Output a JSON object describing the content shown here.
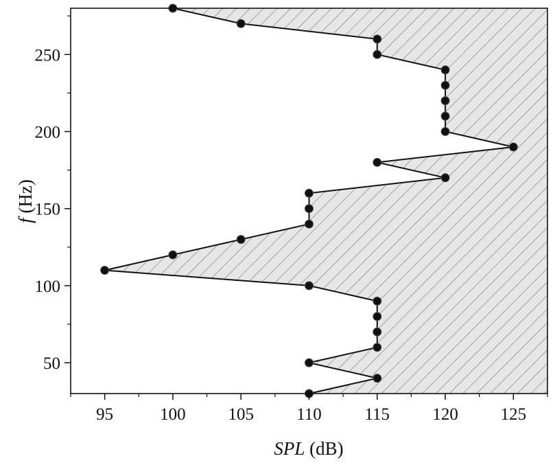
{
  "chart_data": {
    "type": "line",
    "orientation": "x-is-SPL-y-is-frequency",
    "xlabel_italic": "SPL",
    "xlabel_unit": "(dB)",
    "ylabel_italic": "f",
    "ylabel_unit": "(Hz)",
    "xlim": [
      92.5,
      127.5
    ],
    "ylim": [
      30,
      280
    ],
    "xticks": [
      95,
      100,
      105,
      110,
      115,
      120,
      125
    ],
    "yticks": [
      50,
      100,
      150,
      200,
      250
    ],
    "grid": false,
    "legend": "none",
    "fill_region": "right of curve, diagonal hatch",
    "fill_color": "#e6e6e6",
    "line_color": "#111111",
    "marker_color": "#111111",
    "series": [
      {
        "points": [
          {
            "spl": 110,
            "f": 30
          },
          {
            "spl": 115,
            "f": 40
          },
          {
            "spl": 110,
            "f": 50
          },
          {
            "spl": 115,
            "f": 60
          },
          {
            "spl": 115,
            "f": 70
          },
          {
            "spl": 115,
            "f": 80
          },
          {
            "spl": 115,
            "f": 90
          },
          {
            "spl": 110,
            "f": 100
          },
          {
            "spl": 95,
            "f": 110
          },
          {
            "spl": 100,
            "f": 120
          },
          {
            "spl": 105,
            "f": 130
          },
          {
            "spl": 110,
            "f": 140
          },
          {
            "spl": 110,
            "f": 150
          },
          {
            "spl": 110,
            "f": 160
          },
          {
            "spl": 120,
            "f": 170
          },
          {
            "spl": 115,
            "f": 180
          },
          {
            "spl": 125,
            "f": 190
          },
          {
            "spl": 120,
            "f": 200
          },
          {
            "spl": 120,
            "f": 210
          },
          {
            "spl": 120,
            "f": 220
          },
          {
            "spl": 120,
            "f": 230
          },
          {
            "spl": 120,
            "f": 240
          },
          {
            "spl": 115,
            "f": 250
          },
          {
            "spl": 115,
            "f": 260
          },
          {
            "spl": 105,
            "f": 270
          },
          {
            "spl": 100,
            "f": 280
          }
        ]
      }
    ]
  }
}
